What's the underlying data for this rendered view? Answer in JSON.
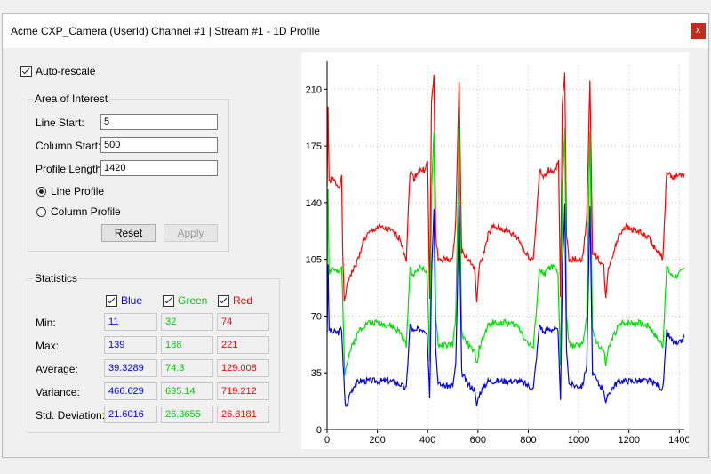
{
  "window": {
    "title": "Acme CXP_Camera (UserId) Channel #1 | Stream #1 - 1D Profile",
    "close_glyph": "x"
  },
  "auto_rescale": {
    "label": "Auto-rescale",
    "checked": true
  },
  "area_of_interest": {
    "title": "Area of Interest",
    "line_start_label": "Line Start:",
    "line_start": "5",
    "column_start_label": "Column Start:",
    "column_start": "500",
    "profile_length_label": "Profile Length",
    "profile_length": "1420",
    "line_profile_label": "Line Profile",
    "column_profile_label": "Column Profile",
    "selected": "line",
    "reset_label": "Reset",
    "apply_label": "Apply"
  },
  "statistics": {
    "title": "Statistics",
    "channels": [
      {
        "name": "Blue",
        "color": "#0000ff",
        "checked": true
      },
      {
        "name": "Green",
        "color": "#00cc00",
        "checked": true
      },
      {
        "name": "Red",
        "color": "#ff0000",
        "checked": true
      }
    ],
    "rows": [
      {
        "label": "Min:",
        "values": [
          "11",
          "32",
          "74"
        ]
      },
      {
        "label": "Max:",
        "values": [
          "139",
          "188",
          "221"
        ]
      },
      {
        "label": "Average:",
        "values": [
          "39.3289",
          "74.3",
          "129.008"
        ]
      },
      {
        "label": "Variance:",
        "values": [
          "466.629",
          "695.14",
          "719.212"
        ]
      },
      {
        "label": "Std. Deviation:",
        "values": [
          "21.6016",
          "26.3655",
          "26.8181"
        ]
      }
    ]
  },
  "chart_data": {
    "type": "line",
    "xlim": [
      0,
      1420
    ],
    "ylim": [
      0,
      225
    ],
    "xticks": [
      0,
      200,
      400,
      600,
      800,
      1000,
      1200,
      1400
    ],
    "yticks": [
      0,
      35,
      70,
      105,
      140,
      175,
      210
    ],
    "grid": true,
    "series": [
      {
        "name": "Red",
        "color": "#ff0000",
        "points": [
          [
            0,
            150
          ],
          [
            4,
            200
          ],
          [
            8,
            152
          ],
          [
            20,
            155
          ],
          [
            45,
            150
          ],
          [
            58,
            155
          ],
          [
            62,
            110
          ],
          [
            68,
            78
          ],
          [
            75,
            85
          ],
          [
            90,
            95
          ],
          [
            110,
            100
          ],
          [
            130,
            108
          ],
          [
            140,
            115
          ],
          [
            160,
            120
          ],
          [
            200,
            125
          ],
          [
            250,
            123
          ],
          [
            290,
            118
          ],
          [
            315,
            105
          ],
          [
            330,
            160
          ],
          [
            345,
            155
          ],
          [
            365,
            160
          ],
          [
            385,
            160
          ],
          [
            400,
            165
          ],
          [
            408,
            80
          ],
          [
            415,
            200
          ],
          [
            425,
            220
          ],
          [
            432,
            120
          ],
          [
            442,
            105
          ],
          [
            470,
            105
          ],
          [
            500,
            105
          ],
          [
            512,
            130
          ],
          [
            525,
            215
          ],
          [
            535,
            110
          ],
          [
            560,
            105
          ],
          [
            585,
            100
          ],
          [
            595,
            80
          ],
          [
            605,
            100
          ],
          [
            625,
            110
          ],
          [
            640,
            120
          ],
          [
            660,
            125
          ],
          [
            710,
            123
          ],
          [
            760,
            118
          ],
          [
            790,
            108
          ],
          [
            820,
            105
          ],
          [
            845,
            160
          ],
          [
            860,
            155
          ],
          [
            880,
            160
          ],
          [
            905,
            160
          ],
          [
            920,
            165
          ],
          [
            928,
            80
          ],
          [
            935,
            200
          ],
          [
            945,
            220
          ],
          [
            952,
            120
          ],
          [
            962,
            105
          ],
          [
            990,
            105
          ],
          [
            1015,
            105
          ],
          [
            1032,
            130
          ],
          [
            1045,
            215
          ],
          [
            1055,
            110
          ],
          [
            1080,
            105
          ],
          [
            1100,
            100
          ],
          [
            1108,
            80
          ],
          [
            1118,
            100
          ],
          [
            1140,
            110
          ],
          [
            1160,
            120
          ],
          [
            1180,
            125
          ],
          [
            1230,
            123
          ],
          [
            1280,
            118
          ],
          [
            1310,
            110
          ],
          [
            1335,
            105
          ],
          [
            1350,
            160
          ],
          [
            1370,
            155
          ],
          [
            1395,
            157
          ],
          [
            1420,
            158
          ]
        ]
      },
      {
        "name": "Green",
        "color": "#00dd00",
        "points": [
          [
            0,
            95
          ],
          [
            4,
            150
          ],
          [
            8,
            97
          ],
          [
            20,
            100
          ],
          [
            45,
            96
          ],
          [
            58,
            100
          ],
          [
            64,
            70
          ],
          [
            70,
            35
          ],
          [
            76,
            40
          ],
          [
            90,
            48
          ],
          [
            110,
            55
          ],
          [
            130,
            62
          ],
          [
            160,
            66
          ],
          [
            200,
            66
          ],
          [
            250,
            64
          ],
          [
            290,
            60
          ],
          [
            315,
            52
          ],
          [
            330,
            100
          ],
          [
            345,
            95
          ],
          [
            365,
            100
          ],
          [
            385,
            100
          ],
          [
            398,
            95
          ],
          [
            408,
            40
          ],
          [
            416,
            150
          ],
          [
            425,
            185
          ],
          [
            432,
            70
          ],
          [
            442,
            52
          ],
          [
            470,
            52
          ],
          [
            500,
            52
          ],
          [
            512,
            70
          ],
          [
            525,
            185
          ],
          [
            535,
            60
          ],
          [
            560,
            52
          ],
          [
            585,
            48
          ],
          [
            595,
            40
          ],
          [
            605,
            50
          ],
          [
            625,
            58
          ],
          [
            640,
            64
          ],
          [
            660,
            66
          ],
          [
            710,
            66
          ],
          [
            760,
            64
          ],
          [
            790,
            55
          ],
          [
            820,
            50
          ],
          [
            845,
            100
          ],
          [
            860,
            95
          ],
          [
            880,
            100
          ],
          [
            905,
            100
          ],
          [
            918,
            95
          ],
          [
            928,
            40
          ],
          [
            936,
            150
          ],
          [
            945,
            185
          ],
          [
            952,
            70
          ],
          [
            962,
            52
          ],
          [
            990,
            52
          ],
          [
            1015,
            52
          ],
          [
            1032,
            70
          ],
          [
            1045,
            185
          ],
          [
            1055,
            60
          ],
          [
            1080,
            52
          ],
          [
            1100,
            48
          ],
          [
            1108,
            40
          ],
          [
            1118,
            50
          ],
          [
            1140,
            58
          ],
          [
            1160,
            64
          ],
          [
            1180,
            66
          ],
          [
            1230,
            66
          ],
          [
            1280,
            64
          ],
          [
            1310,
            57
          ],
          [
            1335,
            52
          ],
          [
            1350,
            100
          ],
          [
            1370,
            95
          ],
          [
            1395,
            95
          ],
          [
            1420,
            100
          ]
        ]
      },
      {
        "name": "Blue",
        "color": "#0000ee",
        "points": [
          [
            0,
            60
          ],
          [
            4,
            100
          ],
          [
            8,
            62
          ],
          [
            20,
            60
          ],
          [
            45,
            60
          ],
          [
            58,
            62
          ],
          [
            64,
            40
          ],
          [
            72,
            15
          ],
          [
            80,
            15
          ],
          [
            90,
            22
          ],
          [
            110,
            28
          ],
          [
            130,
            30
          ],
          [
            200,
            30
          ],
          [
            250,
            30
          ],
          [
            290,
            28
          ],
          [
            315,
            25
          ],
          [
            330,
            65
          ],
          [
            345,
            60
          ],
          [
            365,
            62
          ],
          [
            385,
            62
          ],
          [
            398,
            60
          ],
          [
            408,
            20
          ],
          [
            416,
            100
          ],
          [
            425,
            138
          ],
          [
            432,
            50
          ],
          [
            442,
            28
          ],
          [
            470,
            27
          ],
          [
            500,
            27
          ],
          [
            512,
            40
          ],
          [
            525,
            138
          ],
          [
            535,
            35
          ],
          [
            560,
            28
          ],
          [
            585,
            25
          ],
          [
            595,
            15
          ],
          [
            605,
            22
          ],
          [
            625,
            27
          ],
          [
            640,
            30
          ],
          [
            710,
            30
          ],
          [
            760,
            30
          ],
          [
            790,
            28
          ],
          [
            820,
            25
          ],
          [
            845,
            65
          ],
          [
            860,
            60
          ],
          [
            880,
            62
          ],
          [
            905,
            62
          ],
          [
            918,
            60
          ],
          [
            928,
            20
          ],
          [
            936,
            100
          ],
          [
            945,
            138
          ],
          [
            952,
            50
          ],
          [
            962,
            28
          ],
          [
            990,
            27
          ],
          [
            1015,
            27
          ],
          [
            1032,
            40
          ],
          [
            1045,
            138
          ],
          [
            1055,
            35
          ],
          [
            1080,
            28
          ],
          [
            1100,
            25
          ],
          [
            1108,
            15
          ],
          [
            1118,
            22
          ],
          [
            1140,
            27
          ],
          [
            1160,
            30
          ],
          [
            1230,
            30
          ],
          [
            1280,
            30
          ],
          [
            1310,
            28
          ],
          [
            1335,
            25
          ],
          [
            1350,
            60
          ],
          [
            1370,
            55
          ],
          [
            1395,
            52
          ],
          [
            1420,
            57
          ]
        ]
      }
    ]
  }
}
